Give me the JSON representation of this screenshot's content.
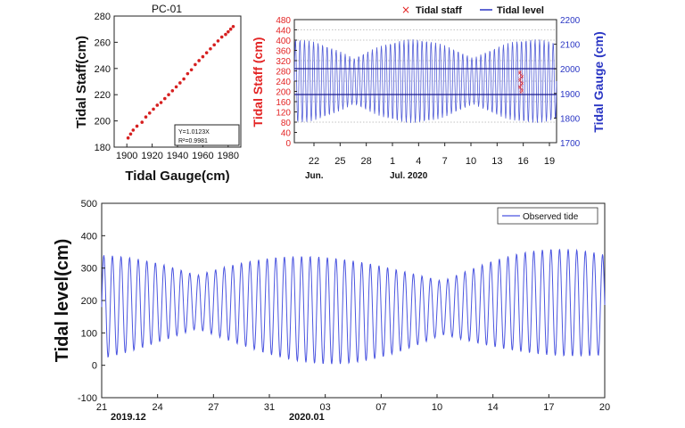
{
  "chart_data": [
    {
      "type": "scatter",
      "title": "PC-01",
      "xlabel": "Tidal Gauge(cm)",
      "ylabel": "Tidal Staff(cm)",
      "xlim": [
        1890,
        1990
      ],
      "ylim": [
        180,
        280
      ],
      "xticks": [
        "1900",
        "1920",
        "1940",
        "1960",
        "1980"
      ],
      "yticks": [
        "180",
        "200",
        "220",
        "240",
        "260",
        "280"
      ],
      "annotation": [
        "Y=1.0123X",
        "R²=0.9981"
      ],
      "points": [
        [
          1901,
          187
        ],
        [
          1903,
          190
        ],
        [
          1905,
          193
        ],
        [
          1908,
          196
        ],
        [
          1912,
          199
        ],
        [
          1915,
          203
        ],
        [
          1918,
          206
        ],
        [
          1921,
          209
        ],
        [
          1924,
          212
        ],
        [
          1927,
          214
        ],
        [
          1930,
          217
        ],
        [
          1933,
          220
        ],
        [
          1936,
          223
        ],
        [
          1939,
          226
        ],
        [
          1942,
          229
        ],
        [
          1945,
          232
        ],
        [
          1948,
          236
        ],
        [
          1951,
          239
        ],
        [
          1954,
          243
        ],
        [
          1957,
          246
        ],
        [
          1960,
          249
        ],
        [
          1963,
          252
        ],
        [
          1966,
          255
        ],
        [
          1969,
          258
        ],
        [
          1972,
          261
        ],
        [
          1975,
          264
        ],
        [
          1978,
          266
        ],
        [
          1980,
          268
        ],
        [
          1982,
          270
        ],
        [
          1984,
          272
        ]
      ]
    },
    {
      "type": "line",
      "legend": [
        "Tidal staff",
        "Tidal level"
      ],
      "ylabel_left": "Tidal Staff (cm)",
      "ylabel_right": "Tidal Gauge (cm)",
      "ylim_left": [
        0,
        480
      ],
      "ylim_right": [
        1700,
        2200
      ],
      "yticks_left": [
        "0",
        "40",
        "80",
        "120",
        "160",
        "200",
        "240",
        "280",
        "320",
        "360",
        "400",
        "440",
        "480"
      ],
      "yticks_right": [
        "1700",
        "1800",
        "1900",
        "2000",
        "2100",
        "2200"
      ],
      "xticks": [
        "22",
        "25",
        "28",
        "1",
        "4",
        "7",
        "10",
        "13",
        "16",
        "19"
      ],
      "xlabel_left": "Jun.",
      "xlabel_right": "Jul. 2020",
      "staff_range_cm": [
        200,
        280
      ]
    },
    {
      "type": "line",
      "ylabel": "Tidal level(cm)",
      "ylim": [
        -100,
        500
      ],
      "yticks": [
        "-100",
        "0",
        "100",
        "200",
        "300",
        "400",
        "500"
      ],
      "xticks": [
        "21",
        "24",
        "27",
        "31",
        "03",
        "07",
        "10",
        "14",
        "17",
        "20"
      ],
      "xsub_left": "2019.12",
      "xsub_right": "2020.01",
      "series": [
        {
          "name": "Observed tide"
        }
      ]
    }
  ]
}
